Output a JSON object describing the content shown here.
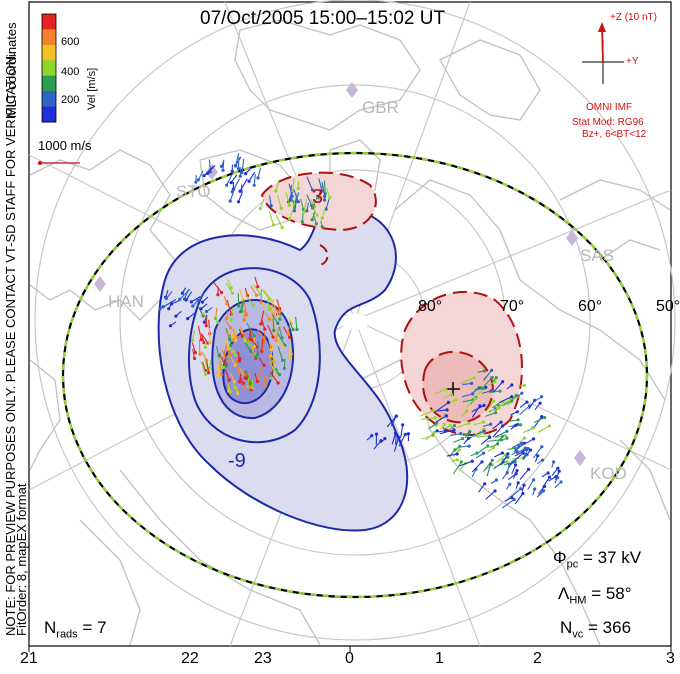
{
  "title": "07/Oct/2005 15:00–15:02 UT",
  "colorbar": {
    "ticks": [
      "600",
      "400",
      "200"
    ],
    "unit": "Vel [m/s]",
    "coord": "MLT coordinates",
    "colors": [
      "#e32222",
      "#f0822a",
      "#f5c023",
      "#8ed52d",
      "#2e9c54",
      "#2e63c8",
      "#1f2fd8"
    ]
  },
  "ref_vector": "1000 m/s",
  "imf": {
    "z_label": "+Z (10 nT)",
    "y_label": "+Y",
    "source": "OMNI IMF",
    "model": "Stat Mod: RG96",
    "condition": "Bz+, 6<BT<12"
  },
  "watermark": "NOTE: FOR PREVIEW PURPOSES ONLY. PLEASE CONTACT VT-SD STAFF FOR VERIFICATION.",
  "fit_order": "FitOrder: 8, mapEX format",
  "stations": [
    "GBR",
    "STO",
    "SAS",
    "HAN",
    "KOD"
  ],
  "latitudes": [
    "80°",
    "70°",
    "60°",
    "50°"
  ],
  "mlt_labels": [
    "21",
    "22",
    "23",
    "0",
    "1",
    "2",
    "3"
  ],
  "contour_labels": [
    "3",
    "-9"
  ],
  "stats": {
    "phi_label": "Φ",
    "phi_sub": "pc",
    "phi_value": "= 37 kV",
    "lambda_label": "Λ",
    "lambda_sub": "HM",
    "lambda_value": "= 58°",
    "nvc_label": "N",
    "nvc_sub": "vc",
    "nvc_value": "= 366",
    "nrads_label": "N",
    "nrads_sub": "rads",
    "nrads_value": "= 7"
  }
}
